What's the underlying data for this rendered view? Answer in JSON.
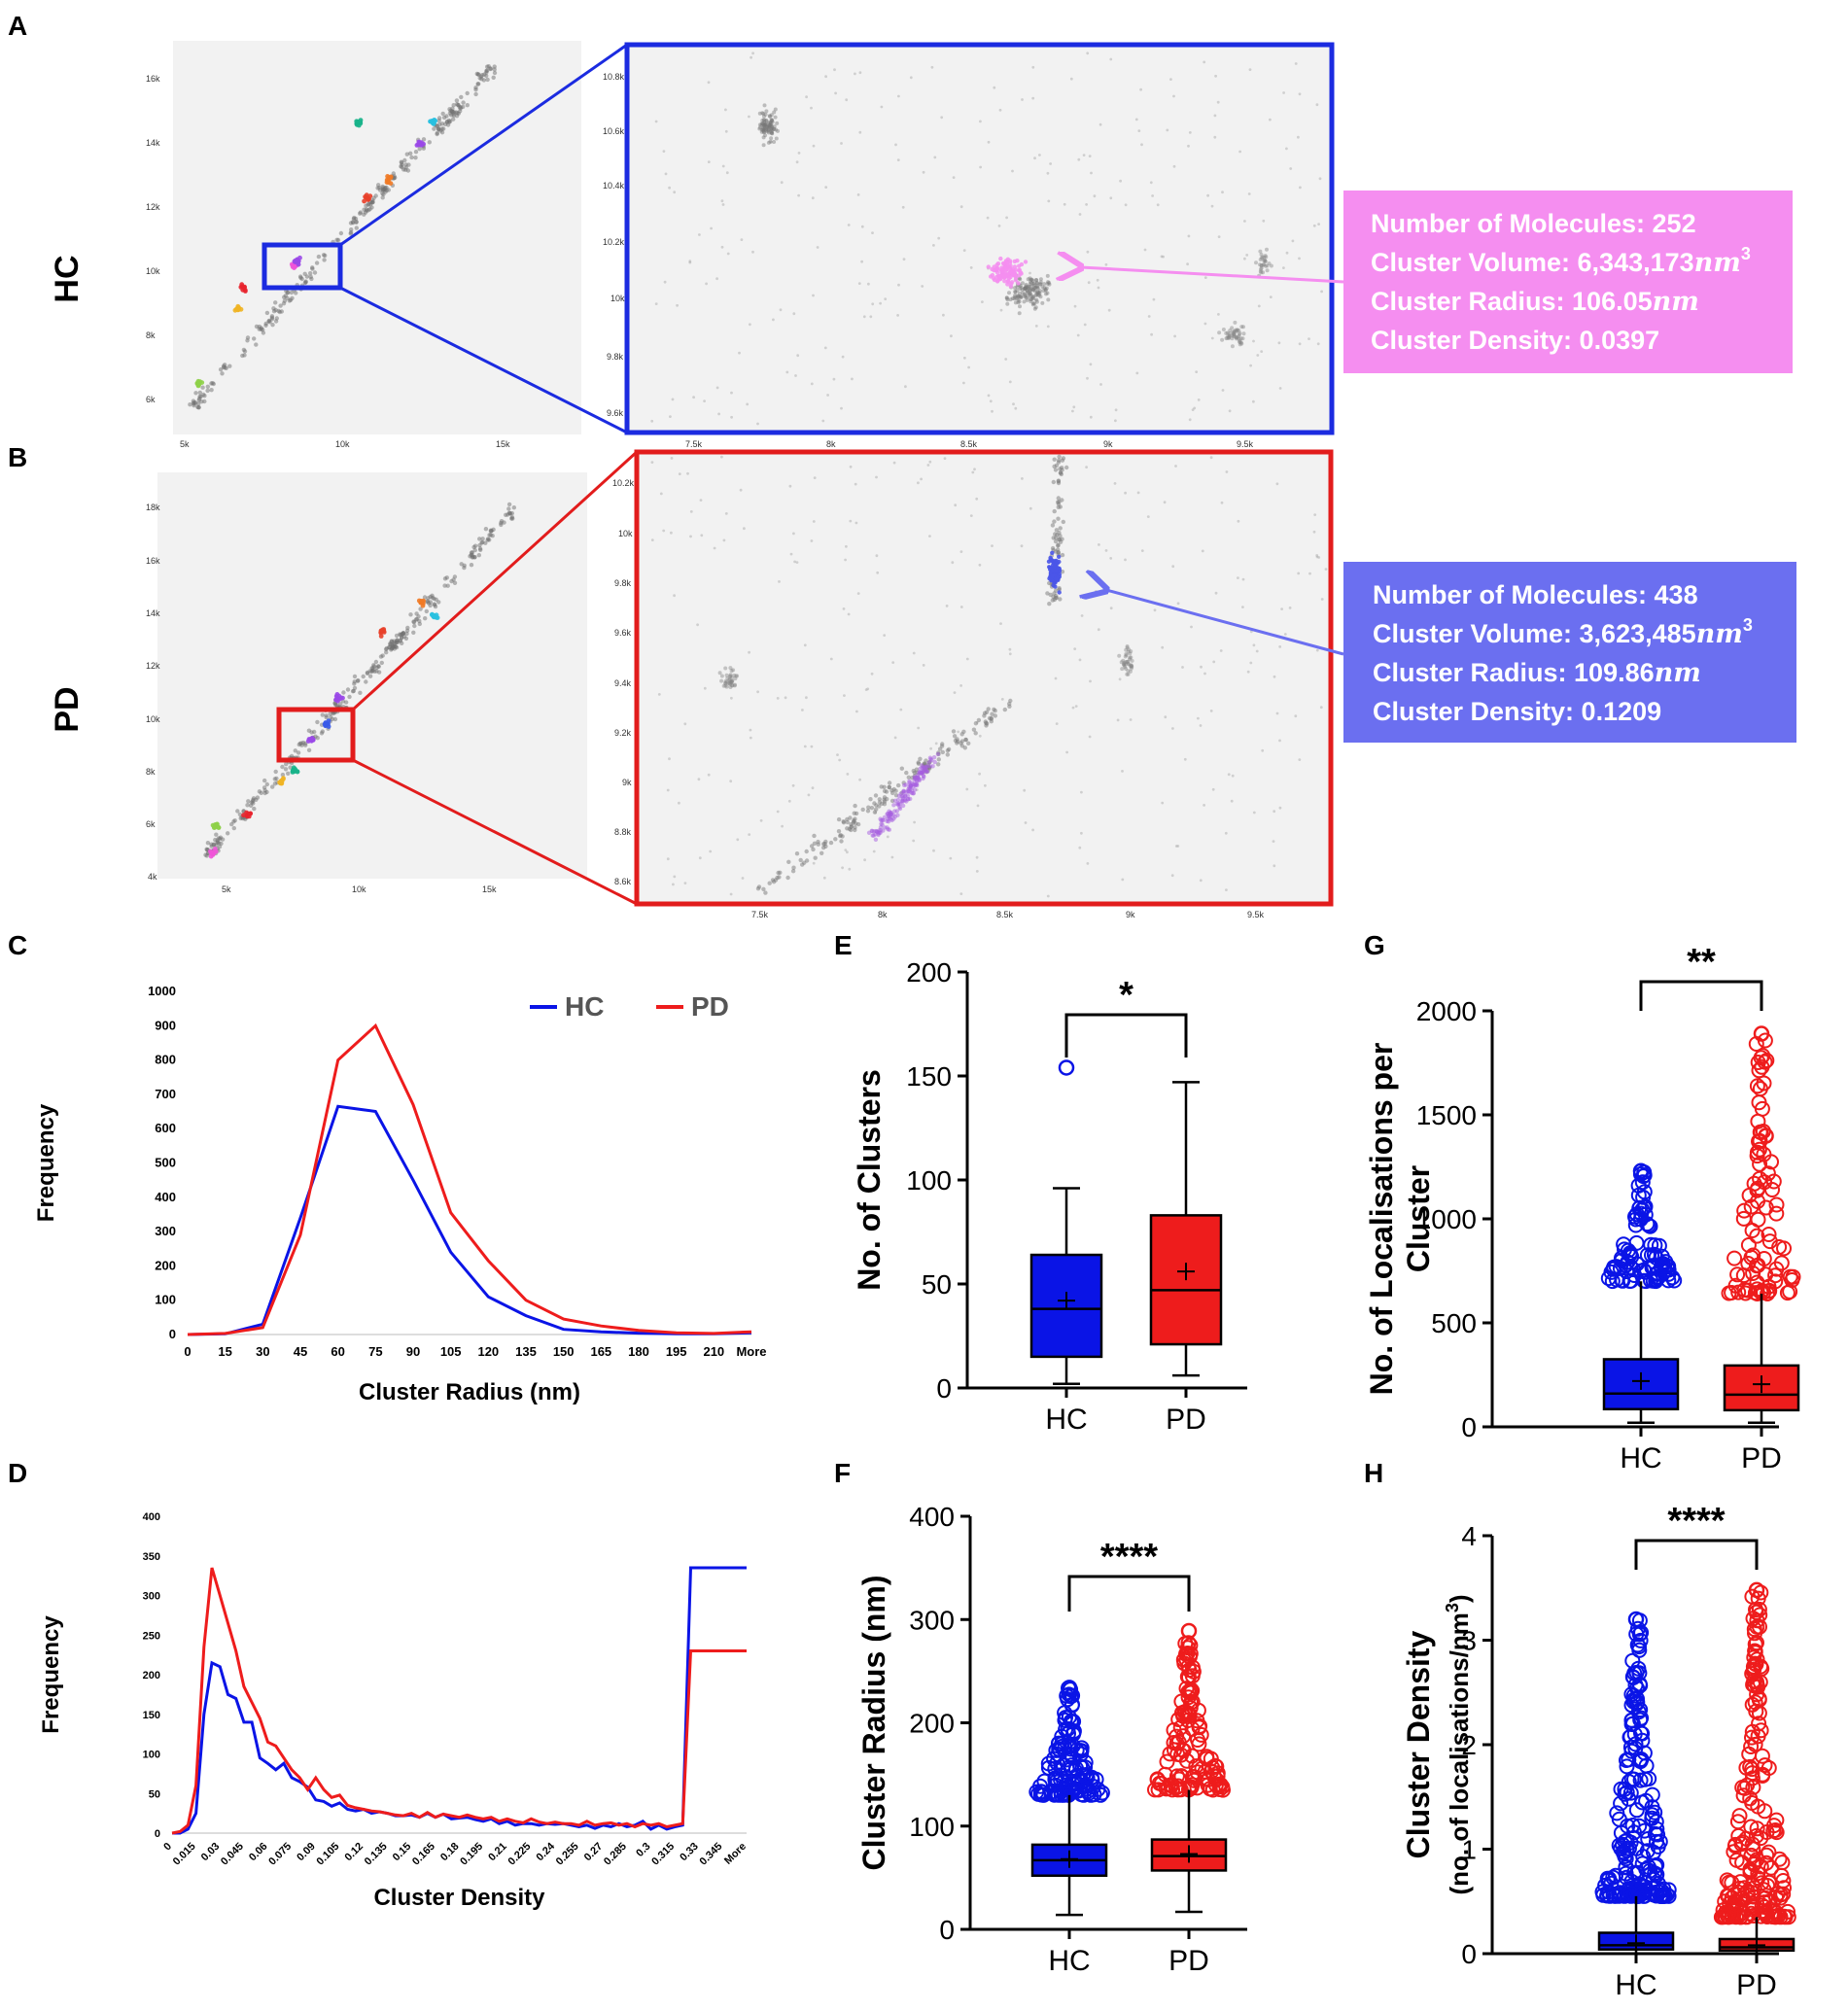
{
  "colors": {
    "hc": "#0a14e6",
    "pd": "#ee1c1c",
    "pink_box": "#f58ef0",
    "blue_box": "#6b6ff0",
    "panel_bg": "#f2f2f2",
    "dot": "#6f6f6f"
  },
  "panel_letters": [
    "A",
    "B",
    "C",
    "D",
    "E",
    "F",
    "G",
    "H"
  ],
  "row_labels": {
    "a": "HC",
    "b": "PD"
  },
  "overview_a": {
    "x_ticks": [
      "5k",
      "10k",
      "15k"
    ],
    "y_ticks": [
      "16k",
      "14k",
      "12k",
      "10k",
      "8k",
      "6k"
    ]
  },
  "zoom_a": {
    "x_ticks": [
      "7.5k",
      "8k",
      "8.5k",
      "9k",
      "9.5k"
    ],
    "y_ticks": [
      "10.8k",
      "10.6k",
      "10.4k",
      "10.2k",
      "10k",
      "9.8k",
      "9.6k"
    ]
  },
  "overview_b": {
    "x_ticks": [
      "5k",
      "10k",
      "15k"
    ],
    "y_ticks": [
      "18k",
      "16k",
      "14k",
      "12k",
      "10k",
      "8k",
      "6k",
      "4k"
    ]
  },
  "zoom_b": {
    "x_ticks": [
      "7.5k",
      "8k",
      "8.5k",
      "9k",
      "9.5k"
    ],
    "y_ticks": [
      "10.2k",
      "10k",
      "9.8k",
      "9.6k",
      "9.4k",
      "9.2k",
      "9k",
      "8.8k",
      "8.6k"
    ]
  },
  "info_a": {
    "lines": [
      "Number of Molecules: 252",
      "Cluster Volume: 6,343,173",
      "Cluster Radius: 106.05",
      "Cluster Density: 0.0397"
    ],
    "unit_nm": "nm",
    "sup": "3"
  },
  "info_b": {
    "lines": [
      "Number of Molecules: 438",
      "Cluster Volume: 3,623,485",
      "Cluster Radius: 109.86",
      "Cluster Density: 0.1209"
    ],
    "unit_nm": "nm",
    "sup": "3"
  },
  "chart_data": [
    {
      "id": "C",
      "type": "line",
      "xlabel": "Cluster Radius (nm)",
      "ylabel": "Frequency",
      "categories": [
        "0",
        "15",
        "30",
        "45",
        "60",
        "75",
        "90",
        "105",
        "120",
        "135",
        "150",
        "165",
        "180",
        "195",
        "210",
        "More"
      ],
      "y_ticks": [
        "1000",
        "900",
        "800",
        "700",
        "600",
        "500",
        "400",
        "300",
        "200",
        "100",
        "0"
      ],
      "ylim": [
        0,
        1000
      ],
      "legend": "top-right",
      "series": [
        {
          "name": "HC",
          "values": [
            0,
            2,
            30,
            340,
            665,
            650,
            450,
            240,
            110,
            55,
            15,
            8,
            4,
            2,
            2,
            5
          ]
        },
        {
          "name": "PD",
          "values": [
            0,
            3,
            20,
            290,
            800,
            900,
            670,
            355,
            215,
            100,
            45,
            25,
            12,
            5,
            3,
            8
          ]
        }
      ]
    },
    {
      "id": "D",
      "type": "line",
      "xlabel": "Cluster Density",
      "ylabel": "Frequency",
      "categories": [
        "0",
        "0.015",
        "0.03",
        "0.045",
        "0.06",
        "0.075",
        "0.09",
        "0.105",
        "0.12",
        "0.135",
        "0.15",
        "0.165",
        "0.18",
        "0.195",
        "0.21",
        "0.225",
        "0.24",
        "0.255",
        "0.27",
        "0.285",
        "0.3",
        "0.315",
        "0.33",
        "0.345",
        "More"
      ],
      "y_ticks": [
        "400",
        "350",
        "300",
        "250",
        "200",
        "150",
        "100",
        "50",
        "0"
      ],
      "ylim": [
        0,
        400
      ],
      "series": [
        {
          "name": "HC",
          "x": [
            0,
            0.005,
            0.01,
            0.015,
            0.02,
            0.025,
            0.03,
            0.035,
            0.04,
            0.045,
            0.05,
            0.055,
            0.06,
            0.065,
            0.07,
            0.075,
            0.08,
            0.085,
            0.09,
            0.095,
            0.1,
            0.105,
            0.11,
            0.115,
            0.12,
            0.125,
            0.13,
            0.135,
            0.14,
            0.145,
            0.15,
            0.155,
            0.16,
            0.165,
            0.17,
            0.175,
            0.18,
            0.185,
            0.19,
            0.195,
            0.2,
            0.205,
            0.21,
            0.215,
            0.22,
            0.225,
            0.23,
            0.235,
            0.24,
            0.245,
            0.25,
            0.255,
            0.26,
            0.265,
            0.27,
            0.275,
            0.28,
            0.285,
            0.29,
            0.295,
            0.3,
            0.305,
            0.31,
            0.315,
            0.32,
            0.325,
            0.33,
            0.335,
            0.34,
            0.345,
            0.35,
            0.36
          ],
          "values": [
            0,
            0,
            5,
            25,
            150,
            215,
            210,
            175,
            170,
            140,
            140,
            95,
            88,
            80,
            88,
            70,
            65,
            58,
            42,
            40,
            34,
            38,
            30,
            28,
            30,
            25,
            27,
            25,
            22,
            22,
            23,
            20,
            25,
            20,
            24,
            18,
            19,
            20,
            17,
            15,
            18,
            12,
            15,
            10,
            12,
            12,
            10,
            12,
            11,
            12,
            10,
            8,
            10,
            6,
            10,
            8,
            12,
            8,
            10,
            15,
            5,
            10,
            5,
            8,
            10,
            335,
            335,
            335,
            335,
            335,
            335,
            335
          ]
        },
        {
          "name": "PD",
          "x": [
            0,
            0.005,
            0.01,
            0.015,
            0.02,
            0.025,
            0.03,
            0.035,
            0.04,
            0.045,
            0.05,
            0.055,
            0.06,
            0.065,
            0.07,
            0.075,
            0.08,
            0.085,
            0.09,
            0.095,
            0.1,
            0.105,
            0.11,
            0.115,
            0.12,
            0.125,
            0.13,
            0.135,
            0.14,
            0.145,
            0.15,
            0.155,
            0.16,
            0.165,
            0.17,
            0.175,
            0.18,
            0.185,
            0.19,
            0.195,
            0.2,
            0.205,
            0.21,
            0.215,
            0.22,
            0.225,
            0.23,
            0.235,
            0.24,
            0.245,
            0.25,
            0.255,
            0.26,
            0.265,
            0.27,
            0.275,
            0.28,
            0.285,
            0.29,
            0.295,
            0.3,
            0.305,
            0.31,
            0.315,
            0.32,
            0.325,
            0.33,
            0.335,
            0.34,
            0.345,
            0.35,
            0.36
          ],
          "values": [
            0,
            2,
            10,
            60,
            235,
            335,
            300,
            265,
            230,
            185,
            165,
            145,
            115,
            110,
            95,
            80,
            70,
            55,
            70,
            55,
            45,
            48,
            35,
            32,
            30,
            28,
            27,
            25,
            23,
            22,
            25,
            20,
            26,
            20,
            24,
            22,
            20,
            23,
            20,
            18,
            20,
            15,
            18,
            15,
            13,
            18,
            14,
            12,
            14,
            12,
            12,
            10,
            15,
            10,
            12,
            13,
            10,
            12,
            8,
            12,
            10,
            12,
            8,
            10,
            12,
            230,
            230,
            230,
            230,
            230,
            230,
            230
          ]
        }
      ]
    },
    {
      "id": "E",
      "type": "box",
      "ylabel": "No. of  Clusters",
      "categories": [
        "HC",
        "PD"
      ],
      "y_ticks": [
        "200",
        "150",
        "100",
        "50",
        "0"
      ],
      "ylim": [
        0,
        200
      ],
      "significance": "*",
      "boxes": [
        {
          "name": "HC",
          "min": 2,
          "q1": 15,
          "median": 38,
          "q3": 64,
          "max": 96,
          "mean": 42,
          "outliers": [
            154
          ]
        },
        {
          "name": "PD",
          "min": 6,
          "q1": 21,
          "median": 47,
          "q3": 83,
          "max": 147,
          "mean": 56,
          "outliers": []
        }
      ]
    },
    {
      "id": "F",
      "type": "box",
      "ylabel": "Cluster Radius (nm)",
      "categories": [
        "HC",
        "PD"
      ],
      "y_ticks": [
        "400",
        "300",
        "200",
        "100",
        "0"
      ],
      "ylim": [
        0,
        400
      ],
      "significance": "****",
      "boxes": [
        {
          "name": "HC",
          "min": 14,
          "q1": 52,
          "median": 67,
          "q3": 82,
          "max": 130,
          "mean": 68,
          "outlier_range": [
            130,
            234
          ]
        },
        {
          "name": "PD",
          "min": 17,
          "q1": 57,
          "median": 71,
          "q3": 87,
          "max": 135,
          "mean": 73,
          "outlier_range": [
            135,
            289
          ]
        }
      ]
    },
    {
      "id": "G",
      "type": "box",
      "ylabel": "No. of Localisations per Cluster",
      "categories": [
        "HC",
        "PD"
      ],
      "y_ticks": [
        "2000",
        "1500",
        "1000",
        "500",
        "0"
      ],
      "ylim": [
        0,
        2000
      ],
      "significance": "**",
      "boxes": [
        {
          "name": "HC",
          "min": 20,
          "q1": 85,
          "median": 160,
          "q3": 325,
          "max": 700,
          "mean": 220,
          "outlier_range": [
            700,
            1230
          ]
        },
        {
          "name": "PD",
          "min": 20,
          "q1": 80,
          "median": 155,
          "q3": 295,
          "max": 640,
          "mean": 205,
          "outlier_range": [
            640,
            1890
          ]
        }
      ]
    },
    {
      "id": "H",
      "type": "box",
      "ylabel": "Cluster  Density",
      "ylabel2": "(no. of localisations/nm",
      "categories": [
        "HC",
        "PD"
      ],
      "y_ticks": [
        "4",
        "3",
        "2",
        "1",
        "0"
      ],
      "ylim": [
        0,
        4
      ],
      "significance": "****",
      "boxes": [
        {
          "name": "HC",
          "min": 0.0,
          "q1": 0.04,
          "median": 0.08,
          "q3": 0.2,
          "max": 0.55,
          "mean": 0.1,
          "outlier_range": [
            0.55,
            3.2
          ]
        },
        {
          "name": "PD",
          "min": 0.0,
          "q1": 0.03,
          "median": 0.06,
          "q3": 0.14,
          "max": 0.35,
          "mean": 0.08,
          "outlier_range": [
            0.35,
            3.48
          ]
        }
      ]
    }
  ]
}
